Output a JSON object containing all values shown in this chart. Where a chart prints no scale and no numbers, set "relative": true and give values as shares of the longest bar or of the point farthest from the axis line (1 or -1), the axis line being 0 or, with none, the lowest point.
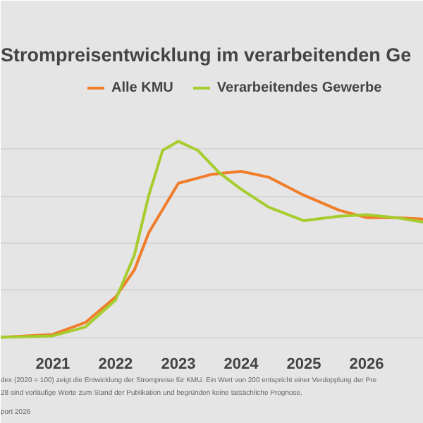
{
  "chart_data": {
    "type": "line",
    "title": "Strompreisentwicklung im verarbeitenden Ge",
    "relative": true,
    "x": [
      2020.17,
      2021,
      2021.52,
      2022,
      2022.3,
      2022.53,
      2022.75,
      2023,
      2023.31,
      2023.54,
      2023.65,
      2024,
      2024.44,
      2025,
      2025.56,
      2026,
      2026.46,
      2026.91
    ],
    "xlim": [
      2020.17,
      2026.91
    ],
    "xticks": [
      2021,
      2022,
      2023,
      2024,
      2025,
      2026
    ],
    "series": [
      {
        "name": "Alle KMU",
        "color": "#f07d2a",
        "values": [
          0,
          0.015,
          0.076,
          0.206,
          0.344,
          0.534,
          null,
          0.786,
          null,
          0.832,
          null,
          0.847,
          0.817,
          0.725,
          0.649,
          0.611,
          0.611,
          0.603
        ]
      },
      {
        "name": "Verarbeitendes Gewerbe",
        "color": "#a6cd2e",
        "values": [
          0,
          0.008,
          0.053,
          0.191,
          0.42,
          0.725,
          0.954,
          1,
          0.954,
          null,
          0.84,
          0.756,
          0.664,
          0.595,
          0.618,
          0.626,
          0.611,
          0.588
        ]
      }
    ],
    "grid": "y",
    "legend": "top",
    "marker": "none",
    "line_style": "solid",
    "annotations": [
      "dex (2020 = 100) zeigt die Entwicklung der Strompreise für KMU. Ein Wert von 200 entspricht einer Verdopplung der Pre",
      "28 sind vorläufige Werte zum Stand der Publikation und begründen keine tatsächliche Prognose.",
      "port 2026"
    ]
  }
}
